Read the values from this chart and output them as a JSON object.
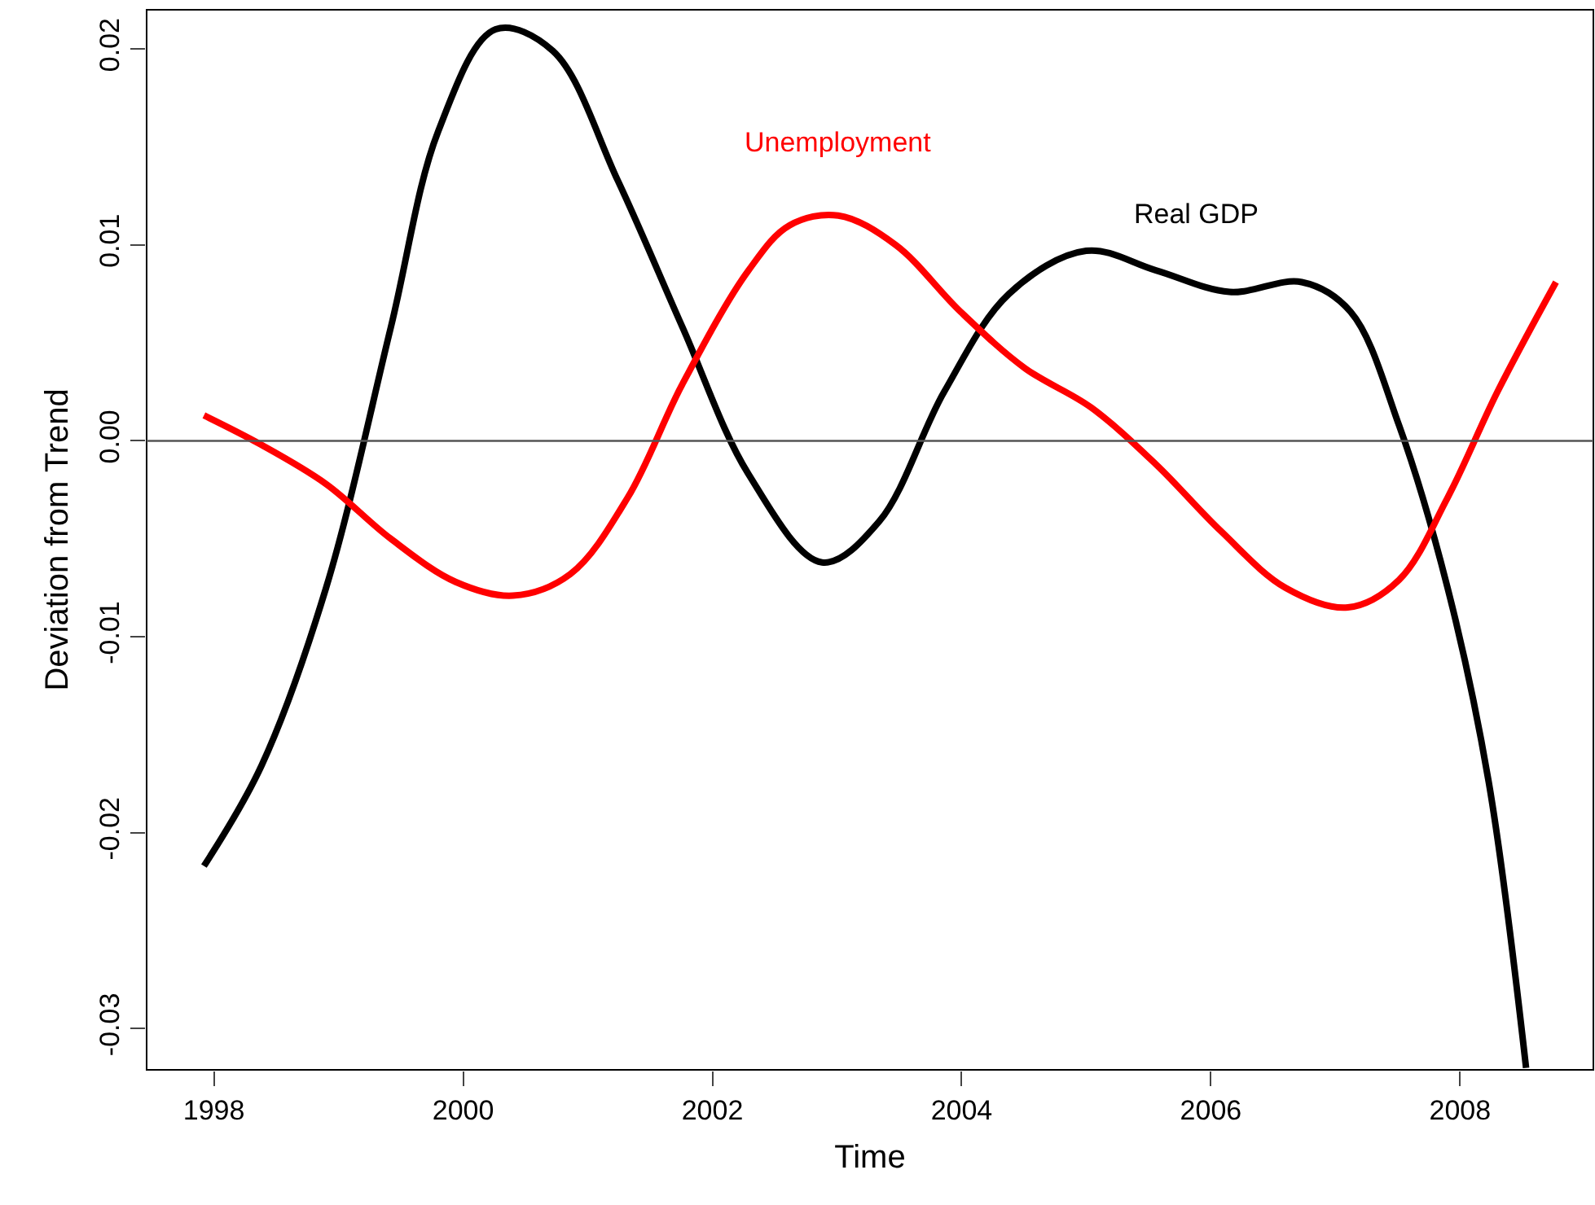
{
  "chart_data": {
    "type": "line",
    "xlabel": "Time",
    "ylabel": "Deviation from Trend",
    "xlim": [
      1997.46,
      2009.07
    ],
    "xticks": [
      1998,
      2000,
      2002,
      2004,
      2006,
      2008
    ],
    "ylim": [
      -0.0321,
      0.022
    ],
    "yticks": [
      -0.03,
      -0.02,
      -0.01,
      {
        "value": 0,
        "label": "0.00"
      },
      0.01,
      0.02
    ],
    "grid": false,
    "legend": false,
    "marker": "none",
    "line_style": "solid",
    "ref_lines": [
      {
        "axis": "y",
        "value": 0,
        "color": "#555555"
      }
    ],
    "series": [
      {
        "name": "Real GDP",
        "color": "#000000",
        "x": [
          1997.92,
          1998.38,
          1998.9,
          1999.42,
          1999.8,
          2000.26,
          2000.72,
          2001.24,
          2001.76,
          2002.29,
          2002.88,
          2003.34,
          2003.86,
          2004.38,
          2005.0,
          2005.56,
          2006.15,
          2006.73,
          2007.12,
          2007.51,
          2007.9,
          2008.23,
          2008.53
        ],
        "values": [
          -0.0217,
          -0.0166,
          -0.0075,
          0.0058,
          0.0158,
          0.021,
          0.0199,
          0.0133,
          0.0058,
          -0.0017,
          -0.0062,
          -0.0041,
          0.0025,
          0.0075,
          0.0097,
          0.0087,
          0.0076,
          0.0081,
          0.0066,
          0.0008,
          -0.0075,
          -0.0174,
          -0.032
        ]
      },
      {
        "name": "Unemployment",
        "color": "#ff0000",
        "x": [
          1997.92,
          1998.38,
          1998.9,
          1999.42,
          1999.94,
          2000.4,
          2000.86,
          2001.32,
          2001.76,
          2002.29,
          2002.62,
          2003.01,
          2003.47,
          2003.99,
          2004.51,
          2005.04,
          2005.56,
          2006.08,
          2006.6,
          2007.1,
          2007.51,
          2007.9,
          2008.3,
          2008.77
        ],
        "values": [
          0.0013,
          -0.0002,
          -0.0022,
          -0.005,
          -0.0072,
          -0.0079,
          -0.0068,
          -0.0029,
          0.0029,
          0.0087,
          0.011,
          0.0115,
          0.01,
          0.0066,
          0.0037,
          0.0017,
          -0.0012,
          -0.0046,
          -0.0075,
          -0.0085,
          -0.0071,
          -0.0029,
          0.0025,
          0.0081
        ]
      }
    ]
  }
}
